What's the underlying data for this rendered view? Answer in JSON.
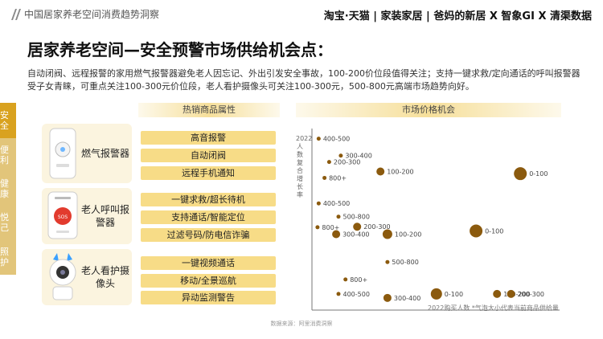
{
  "header": {
    "title": "中国居家养老空间消费趋势洞察",
    "brands": "淘宝·天猫 | 家装家居 | 爸妈的新居 X 智象GI X 清渠数据"
  },
  "page_title": "居家养老空间—安全预警市场供给机会点：",
  "paragraph": "自动闭阀、远程报警的家用燃气报警器避免老人因忘记、外出引发安全事故，100-200价位段值得关注；支持一键求救/定向通话的呼叫报警器受子女青睐，可重点关注100-300元价位段，老人看护摄像头可关注100-300元，500-800元高端市场趋势向好。",
  "side_tabs": [
    {
      "label": "安全",
      "active": true
    },
    {
      "label": "便利",
      "active": false
    },
    {
      "label": "健康",
      "active": false
    },
    {
      "label": "悦己",
      "active": false
    },
    {
      "label": "照护",
      "active": false
    }
  ],
  "attributes_header": "热销商品属性",
  "chart_header": "市场价格机会",
  "products": [
    {
      "name": "燃气报警器",
      "attributes": [
        "高音报警",
        "自动闭阀",
        "远程手机通知"
      ]
    },
    {
      "name": "老人呼叫报警器",
      "attributes": [
        "一键求救/超长待机",
        "支持通话/智能定位",
        "过滤号码/防电信诈骗"
      ]
    },
    {
      "name": "老人看护摄像头",
      "attributes": [
        "一键视频通话",
        "移动/全景巡航",
        "异动监测警告"
      ]
    }
  ],
  "chart_data": {
    "type": "scatter",
    "y_axis_title": "2022人数复合增长率",
    "footnote": "2022购买人数 *气泡大小代表当前商品供给量",
    "source": "数据来源：阿里消费洞察",
    "colors": {
      "bubble": "#8b5a0e",
      "axis": "#777777"
    },
    "rows": [
      {
        "name": "燃气报警器",
        "points": [
          {
            "label": "400-500",
            "rel_sales": 0.015,
            "rel_growth": 0.9,
            "size": 2.5
          },
          {
            "label": "300-400",
            "rel_sales": 0.11,
            "rel_growth": 0.58,
            "size": 2.5
          },
          {
            "label": "200-300",
            "rel_sales": 0.06,
            "rel_growth": 0.46,
            "size": 2.5
          },
          {
            "label": "100-200",
            "rel_sales": 0.28,
            "rel_growth": 0.28,
            "size": 5
          },
          {
            "label": "800+",
            "rel_sales": 0.04,
            "rel_growth": 0.16,
            "size": 2.5
          },
          {
            "label": "0-100",
            "rel_sales": 0.88,
            "rel_growth": 0.24,
            "size": 8
          }
        ]
      },
      {
        "name": "老人呼叫报警器",
        "points": [
          {
            "label": "400-500",
            "rel_sales": 0.015,
            "rel_growth": 0.8,
            "size": 2.5
          },
          {
            "label": "500-800",
            "rel_sales": 0.1,
            "rel_growth": 0.55,
            "size": 2.5
          },
          {
            "label": "800+",
            "rel_sales": 0.01,
            "rel_growth": 0.35,
            "size": 2.5
          },
          {
            "label": "200-300",
            "rel_sales": 0.18,
            "rel_growth": 0.36,
            "size": 5
          },
          {
            "label": "300-400",
            "rel_sales": 0.09,
            "rel_growth": 0.22,
            "size": 5
          },
          {
            "label": "100-200",
            "rel_sales": 0.31,
            "rel_growth": 0.22,
            "size": 6
          },
          {
            "label": "0-100",
            "rel_sales": 0.69,
            "rel_growth": 0.28,
            "size": 8
          }
        ]
      },
      {
        "name": "老人看护摄像头",
        "points": [
          {
            "label": "500-800",
            "rel_sales": 0.31,
            "rel_growth": 0.9,
            "size": 2.5
          },
          {
            "label": "800+",
            "rel_sales": 0.13,
            "rel_growth": 0.55,
            "size": 2.5
          },
          {
            "label": "400-500",
            "rel_sales": 0.1,
            "rel_growth": 0.26,
            "size": 2.5
          },
          {
            "label": "300-400",
            "rel_sales": 0.31,
            "rel_growth": 0.18,
            "size": 5
          },
          {
            "label": "0-100",
            "rel_sales": 0.52,
            "rel_growth": 0.26,
            "size": 7
          },
          {
            "label": "100-200",
            "rel_sales": 0.78,
            "rel_growth": 0.26,
            "size": 5
          },
          {
            "label": "200-300",
            "rel_sales": 0.84,
            "rel_growth": 0.26,
            "size": 5
          }
        ]
      }
    ]
  }
}
